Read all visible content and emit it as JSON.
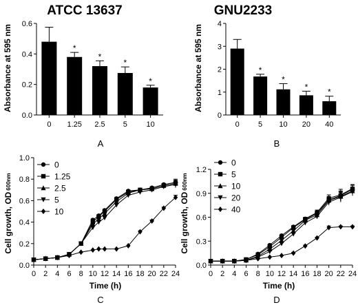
{
  "chart_data": [
    {
      "panel": "A",
      "type": "bar",
      "title": "ATCC 13637",
      "ylabel": "Absorbance at 595 nm",
      "xlabel": "",
      "categories": [
        "0",
        "1.25",
        "2.5",
        "5",
        "10"
      ],
      "values": [
        0.48,
        0.38,
        0.32,
        0.275,
        0.18
      ],
      "errors": [
        0.095,
        0.03,
        0.035,
        0.04,
        0.015
      ],
      "significance": [
        "",
        "*",
        "*",
        "*",
        "*"
      ],
      "ylim": [
        0,
        0.6
      ],
      "yticks": [
        "0.0",
        "0.2",
        "0.4",
        "0.6"
      ],
      "panel_label": "A"
    },
    {
      "panel": "B",
      "type": "bar",
      "title": "GNU2233",
      "ylabel": "Absorbance at 595 nm",
      "xlabel": "",
      "categories": [
        "0",
        "5",
        "10",
        "20",
        "40"
      ],
      "values": [
        2.9,
        1.68,
        1.12,
        0.86,
        0.6
      ],
      "errors": [
        0.4,
        0.1,
        0.25,
        0.18,
        0.22
      ],
      "significance": [
        "",
        "*",
        "*",
        "*",
        "*"
      ],
      "ylim": [
        0,
        4
      ],
      "yticks": [
        "0",
        "1",
        "2",
        "3",
        "4"
      ],
      "panel_label": "B"
    },
    {
      "panel": "C",
      "type": "line",
      "xlabel": "Time (h)",
      "ylabel": "Cell growth, OD",
      "ylabel_sub": "600nm",
      "x": [
        0,
        2,
        4,
        6,
        8,
        10,
        11,
        12,
        14,
        16,
        18,
        20,
        22,
        24
      ],
      "xlim": [
        0,
        24
      ],
      "ylim": [
        0,
        1.0
      ],
      "xticks": [
        "0",
        "2",
        "4",
        "6",
        "8",
        "10",
        "12",
        "14",
        "16",
        "18",
        "20",
        "22",
        "24"
      ],
      "yticks": [
        "0.0",
        "0.2",
        "0.4",
        "0.6",
        "0.8",
        "1.0"
      ],
      "legend_position": "top-left",
      "series": [
        {
          "name": "0",
          "marker": "circle",
          "values": [
            0.05,
            0.06,
            0.07,
            0.1,
            0.2,
            0.42,
            0.46,
            0.51,
            0.62,
            0.69,
            0.7,
            0.72,
            0.75,
            0.77
          ],
          "errors": [
            0,
            0,
            0,
            0,
            0,
            0.01,
            0.01,
            0.01,
            0.01,
            0.01,
            0.01,
            0.01,
            0.01,
            0.03
          ]
        },
        {
          "name": "1.25",
          "marker": "square",
          "values": [
            0.05,
            0.06,
            0.07,
            0.1,
            0.2,
            0.4,
            0.45,
            0.5,
            0.61,
            0.68,
            0.7,
            0.71,
            0.74,
            0.76
          ],
          "errors": [
            0,
            0,
            0,
            0,
            0,
            0.01,
            0.01,
            0.01,
            0.01,
            0.01,
            0.01,
            0.01,
            0.01,
            0.03
          ]
        },
        {
          "name": "2.5",
          "marker": "triangle-up",
          "values": [
            0.05,
            0.06,
            0.07,
            0.1,
            0.2,
            0.38,
            0.43,
            0.48,
            0.59,
            0.67,
            0.7,
            0.71,
            0.74,
            0.76
          ],
          "errors": [
            0,
            0,
            0,
            0,
            0,
            0.01,
            0.01,
            0.01,
            0.01,
            0.01,
            0.01,
            0.01,
            0.01,
            0.03
          ]
        },
        {
          "name": "5",
          "marker": "triangle-down",
          "values": [
            0.05,
            0.06,
            0.07,
            0.1,
            0.2,
            0.35,
            0.4,
            0.44,
            0.56,
            0.65,
            0.68,
            0.7,
            0.73,
            0.75
          ],
          "errors": [
            0,
            0,
            0,
            0,
            0,
            0.01,
            0.01,
            0.01,
            0.01,
            0.01,
            0.01,
            0.01,
            0.01,
            0.03
          ]
        },
        {
          "name": "10",
          "marker": "diamond",
          "values": [
            0.05,
            0.06,
            0.07,
            0.09,
            0.12,
            0.14,
            0.15,
            0.15,
            0.15,
            0.18,
            0.31,
            0.41,
            0.53,
            0.63
          ],
          "errors": [
            0,
            0,
            0,
            0,
            0,
            0,
            0,
            0,
            0,
            0,
            0.01,
            0.01,
            0.01,
            0.02
          ]
        }
      ],
      "panel_label": "C"
    },
    {
      "panel": "D",
      "type": "line",
      "xlabel": "Time (h)",
      "ylabel": "Cell growth, OD",
      "ylabel_sub": "600nm",
      "x": [
        0,
        2,
        4,
        6,
        8,
        10,
        12,
        14,
        16,
        18,
        20,
        22,
        24
      ],
      "xlim": [
        0,
        24
      ],
      "ylim": [
        0,
        1.2
      ],
      "xticks": [
        "0",
        "2",
        "4",
        "6",
        "8",
        "10",
        "12",
        "14",
        "16",
        "18",
        "20",
        "22",
        "24"
      ],
      "yticks": [
        "0.0",
        "0.3",
        "0.6",
        "0.9",
        "1.2"
      ],
      "legend_position": "top-left",
      "series": [
        {
          "name": "0",
          "marker": "circle",
          "values": [
            0.05,
            0.05,
            0.05,
            0.07,
            0.14,
            0.25,
            0.37,
            0.48,
            0.58,
            0.66,
            0.84,
            0.88,
            0.96
          ],
          "errors": [
            0,
            0,
            0,
            0,
            0,
            0.01,
            0.01,
            0.01,
            0.02,
            0.03,
            0.04,
            0.07,
            0.05
          ]
        },
        {
          "name": "5",
          "marker": "square",
          "values": [
            0.05,
            0.05,
            0.05,
            0.07,
            0.13,
            0.23,
            0.35,
            0.47,
            0.57,
            0.65,
            0.82,
            0.87,
            0.95
          ],
          "errors": [
            0,
            0,
            0,
            0,
            0,
            0.01,
            0.01,
            0.01,
            0.02,
            0.03,
            0.04,
            0.06,
            0.05
          ]
        },
        {
          "name": "10",
          "marker": "triangle-up",
          "values": [
            0.05,
            0.05,
            0.05,
            0.06,
            0.11,
            0.2,
            0.31,
            0.43,
            0.56,
            0.63,
            0.81,
            0.86,
            0.93
          ],
          "errors": [
            0,
            0,
            0,
            0,
            0,
            0.01,
            0.01,
            0.01,
            0.02,
            0.03,
            0.04,
            0.06,
            0.05
          ]
        },
        {
          "name": "20",
          "marker": "triangle-down",
          "values": [
            0.05,
            0.05,
            0.05,
            0.06,
            0.1,
            0.17,
            0.27,
            0.39,
            0.53,
            0.61,
            0.79,
            0.85,
            0.92
          ],
          "errors": [
            0,
            0,
            0,
            0,
            0,
            0.01,
            0.01,
            0.01,
            0.02,
            0.03,
            0.04,
            0.06,
            0.05
          ]
        },
        {
          "name": "40",
          "marker": "diamond",
          "values": [
            0.05,
            0.05,
            0.05,
            0.06,
            0.08,
            0.1,
            0.12,
            0.15,
            0.24,
            0.34,
            0.47,
            0.48,
            0.48
          ],
          "errors": [
            0,
            0,
            0,
            0,
            0,
            0,
            0,
            0.01,
            0.01,
            0.01,
            0.02,
            0.01,
            0.01
          ]
        }
      ],
      "panel_label": "D"
    }
  ]
}
